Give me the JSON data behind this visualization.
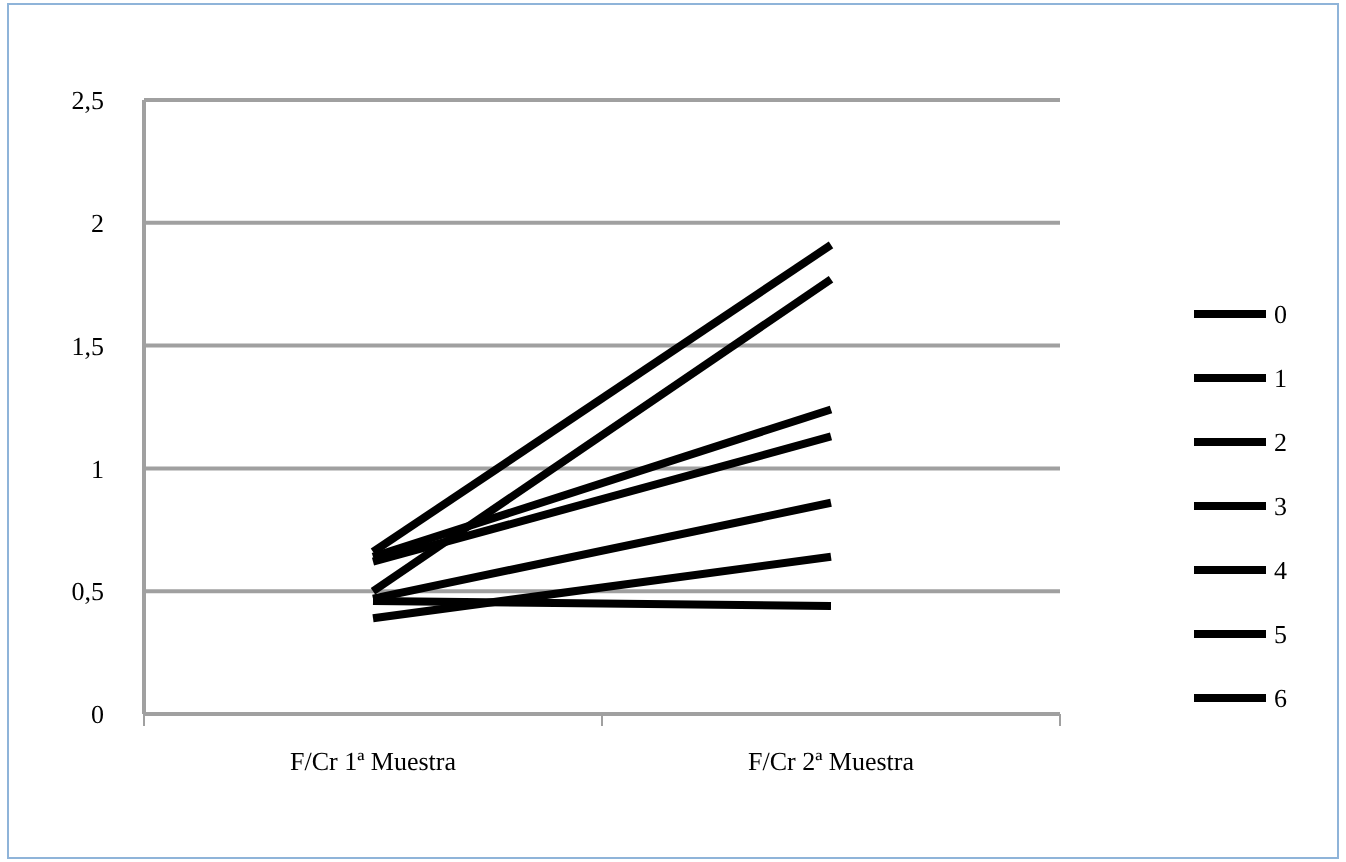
{
  "chart_data": {
    "type": "line",
    "categories": [
      "F/Cr 1ª Muestra",
      "F/Cr 2ª Muestra"
    ],
    "series": [
      {
        "name": "0",
        "color": "#000000",
        "values": [
          0.66,
          1.91
        ]
      },
      {
        "name": "1",
        "color": "#000000",
        "values": [
          0.5,
          1.77
        ]
      },
      {
        "name": "2",
        "color": "#000000",
        "values": [
          0.64,
          1.24
        ]
      },
      {
        "name": "3",
        "color": "#000000",
        "values": [
          0.62,
          1.13
        ]
      },
      {
        "name": "4",
        "color": "#000000",
        "values": [
          0.47,
          0.86
        ]
      },
      {
        "name": "5",
        "color": "#000000",
        "values": [
          0.39,
          0.64
        ]
      },
      {
        "name": "6",
        "color": "#000000",
        "values": [
          0.46,
          0.44
        ]
      }
    ],
    "ylim": [
      0,
      2.5
    ],
    "yticks": [
      0,
      {
        "value": 0.5,
        "label": "0,5"
      },
      1,
      {
        "value": 1.5,
        "label": "1,5"
      },
      2,
      {
        "value": 2.5,
        "label": "2,5"
      }
    ],
    "grid": "y",
    "legend": "right",
    "marker": "none",
    "line_style": "solid"
  }
}
